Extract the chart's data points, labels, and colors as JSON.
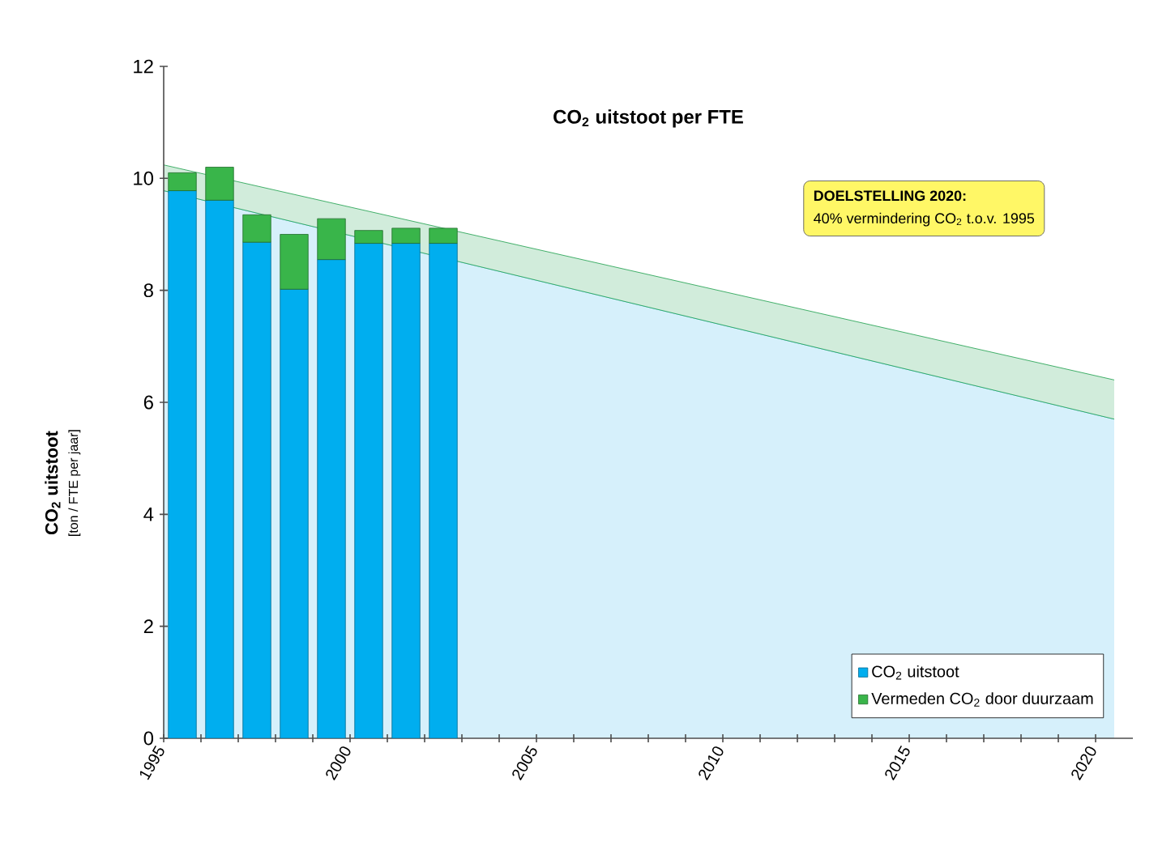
{
  "chart_data": {
    "type": "bar",
    "title": "CO$_{2}$ uitstoot per FTE",
    "ylabel": "CO$_{2}$ uitstoot",
    "stacked": true,
    "annotations": [
      "**DOELSTELLING 2020:**",
      "40% vermindering CO$_{2}$ t.o.v. 1995",
      "[ton / FTE per jaar]"
    ],
    "series": [
      {
        "name": "CO$_{2}$ uitstoot",
        "color": "#00aeef",
        "x": [
          1995.5,
          1996.5,
          1997.5,
          1998.5,
          1999.5,
          2000.5,
          2001.5,
          2002.5
        ],
        "values": [
          9.78,
          9.61,
          8.86,
          8.02,
          8.55,
          8.84,
          8.84,
          8.84
        ]
      },
      {
        "name": "Vermeden CO$_{2}$ door duurzaam",
        "color": "#39b54a",
        "x": [
          1995.5,
          1996.5,
          1997.5,
          1998.5,
          1999.5,
          2000.5,
          2001.5,
          2002.5
        ],
        "values": [
          0.32,
          0.59,
          0.49,
          0.98,
          0.73,
          0.23,
          0.27,
          0.27
        ]
      },
      {
        "type": "line",
        "color": "#33b5ea",
        "x": [
          1995,
          2020.5
        ],
        "values": [
          9.78,
          5.7
        ],
        "lower": [
          0,
          0
        ],
        "upper": [
          9.78,
          5.7
        ]
      },
      {
        "type": "line",
        "color": "#1a9e4a",
        "x": [
          1995,
          2020.5
        ],
        "values": [
          10.24,
          6.4
        ],
        "lower": [
          9.78,
          5.7
        ],
        "upper": [
          10.24,
          6.4
        ]
      },
      {
        "type": "line",
        "color": "#1a9e4a",
        "x": [
          1995,
          2020.5
        ],
        "values": [
          9.78,
          5.7
        ]
      }
    ],
    "xlim": [
      1995,
      2021
    ],
    "ylim": [
      0,
      12
    ],
    "xticks": [
      1995,
      {
        "value": 1996,
        "label": null
      },
      {
        "value": 1997,
        "label": null
      },
      {
        "value": 1998,
        "label": null
      },
      {
        "value": 1999,
        "label": null
      },
      2000,
      {
        "value": 2001,
        "label": null
      },
      {
        "value": 2002,
        "label": null
      },
      {
        "value": 2003,
        "label": null
      },
      {
        "value": 2004,
        "label": null
      },
      2005,
      {
        "value": 2006,
        "label": null
      },
      {
        "value": 2007,
        "label": null
      },
      {
        "value": 2008,
        "label": null
      },
      {
        "value": 2009,
        "label": null
      },
      2010,
      {
        "value": 2011,
        "label": null
      },
      {
        "value": 2012,
        "label": null
      },
      {
        "value": 2013,
        "label": null
      },
      {
        "value": 2014,
        "label": null
      },
      2015,
      {
        "value": 2016,
        "label": null
      },
      {
        "value": 2017,
        "label": null
      },
      {
        "value": 2018,
        "label": null
      },
      {
        "value": 2019,
        "label": null
      },
      2020
    ],
    "yticks": [
      0,
      2,
      4,
      6,
      8,
      10,
      12
    ],
    "grid": false,
    "legend": "bottom right"
  }
}
